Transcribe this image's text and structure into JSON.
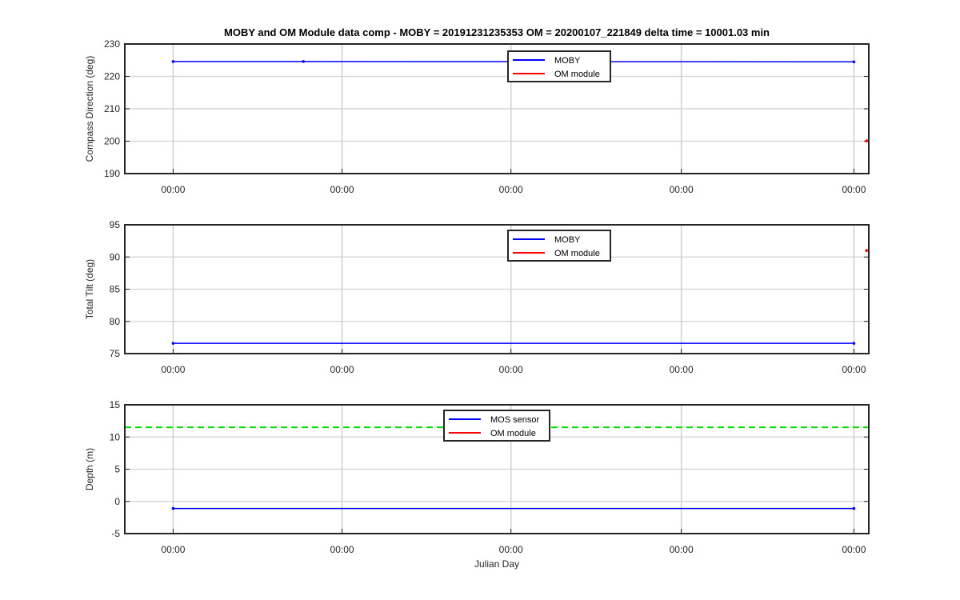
{
  "chart_data": [
    {
      "type": "line",
      "title": "MOBY and OM Module data comp - MOBY = 20191231235353 OM = 20200107_221849 delta time = 10001.03 min",
      "xlabel": "",
      "ylabel": "Compass Direction (deg)",
      "ylim": [
        190,
        230
      ],
      "yticks": [
        "190",
        "200",
        "210",
        "220",
        "230"
      ],
      "xticks": [
        "00:00",
        "00:00",
        "00:00",
        "00:00",
        "00:00"
      ],
      "x_range": [
        0,
        1
      ],
      "grid": true,
      "legend": "top-center",
      "series": [
        {
          "name": "MOBY",
          "color": "#0000ff",
          "x": [
            0.065,
            0.24,
            0.98
          ],
          "y": [
            224.6,
            224.6,
            224.5
          ]
        },
        {
          "name": "OM module",
          "color": "#ff0000",
          "x": [
            0.997
          ],
          "y": [
            200.1
          ]
        }
      ]
    },
    {
      "type": "line",
      "title": "",
      "xlabel": "",
      "ylabel": "Total Tilt (deg)",
      "ylim": [
        75,
        95
      ],
      "yticks": [
        "75",
        "80",
        "85",
        "90",
        "95"
      ],
      "xticks": [
        "00:00",
        "00:00",
        "00:00",
        "00:00",
        "00:00"
      ],
      "x_range": [
        0,
        1
      ],
      "grid": true,
      "legend": "top-center",
      "series": [
        {
          "name": "MOBY",
          "color": "#0000ff",
          "x": [
            0.065,
            0.98
          ],
          "y": [
            76.6,
            76.6
          ]
        },
        {
          "name": "OM module",
          "color": "#ff0000",
          "x": [
            0.997
          ],
          "y": [
            91.0
          ]
        }
      ]
    },
    {
      "type": "line",
      "title": "",
      "xlabel": "Julian Day",
      "ylabel": "Depth (m)",
      "ylim": [
        -5,
        15
      ],
      "yticks": [
        "-5",
        "0",
        "5",
        "10",
        "15"
      ],
      "xticks": [
        "00:00",
        "00:00",
        "00:00",
        "00:00",
        "00:00"
      ],
      "x_range": [
        0,
        1
      ],
      "grid": true,
      "legend": "top-center",
      "series": [
        {
          "name": "MOS sensor",
          "color": "#0000ff",
          "x": [
            0.065,
            0.98
          ],
          "y": [
            -1.1,
            -1.1
          ]
        },
        {
          "name": "OM module",
          "color": "#ff0000",
          "x": [],
          "y": []
        }
      ],
      "reference_line": {
        "color": "#00dd00",
        "y": 11.5,
        "style": "dashed"
      }
    }
  ]
}
